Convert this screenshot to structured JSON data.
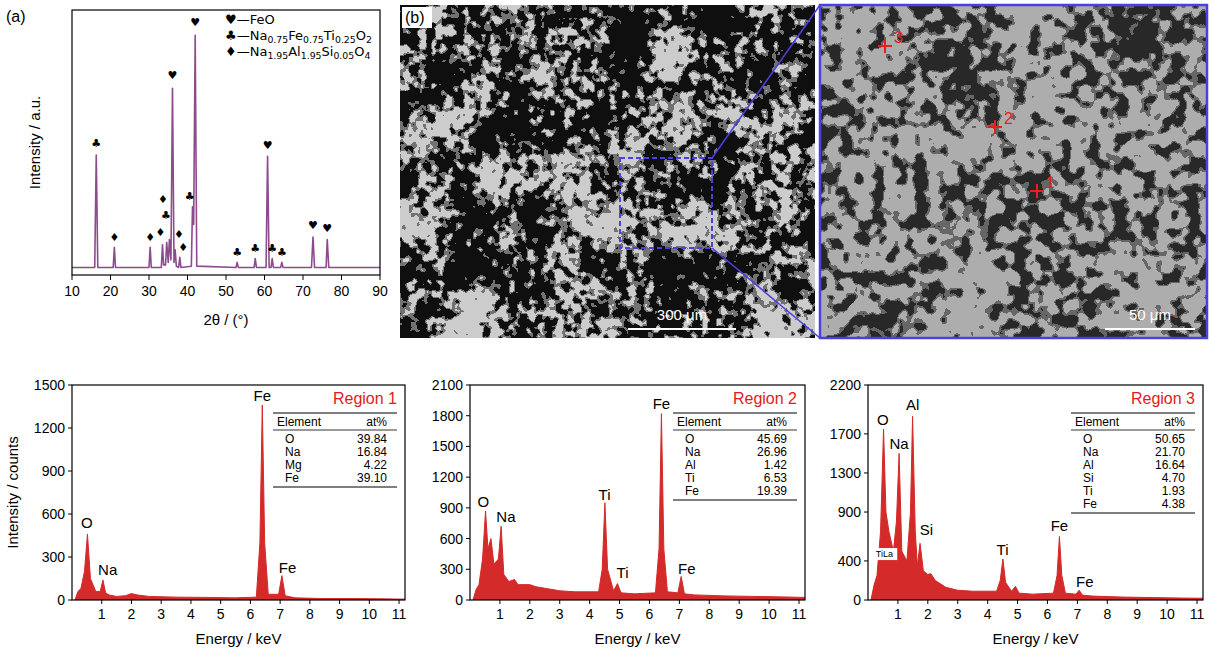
{
  "chart_data": [
    {
      "type": "line",
      "panel_label": "(a)",
      "x_label": "2θ / (°)",
      "y_label": "Intensity / a.u.",
      "xlim": [
        10,
        90
      ],
      "xticks": [
        10,
        20,
        30,
        40,
        50,
        60,
        70,
        80,
        90
      ],
      "ylim": [
        0,
        105
      ],
      "tick_labels": "x",
      "color": "#8c4b8c",
      "legend": "top-right",
      "legend_entries": [
        "♥—FeO",
        "♣—Na0.75Fe0.75Ti0.25O2",
        "♦—Na1.95Al1.95Si0.05O4"
      ],
      "x": [
        10,
        15.9,
        16.3,
        16.7,
        20.7,
        21.0,
        21.3,
        30.0,
        30.3,
        30.6,
        33.2,
        33.5,
        33.8,
        34.3,
        34.6,
        35.0,
        35.3,
        35.7,
        36.1,
        36.5,
        36.8,
        37.1,
        37.7,
        38.0,
        38.3,
        41.0,
        41.3,
        41.6,
        42.0,
        42.4,
        52.6,
        52.9,
        53.2,
        57.3,
        57.6,
        57.9,
        60.4,
        60.8,
        61.2,
        61.7,
        62.0,
        62.3,
        64.2,
        64.5,
        64.8,
        72.2,
        72.6,
        73.0,
        76.0,
        76.3,
        76.7,
        90
      ],
      "values": [
        3,
        3,
        47.5,
        3,
        3,
        11,
        3,
        3,
        11,
        3,
        3,
        12,
        4,
        4,
        13,
        5,
        14,
        6,
        74,
        5,
        10,
        3.5,
        3,
        7,
        3,
        3.5,
        27,
        20,
        95,
        3.5,
        3,
        5,
        3,
        3,
        6.5,
        3,
        3,
        47,
        3,
        3,
        6.5,
        3,
        3,
        5,
        3,
        3,
        15,
        3,
        3,
        14,
        3,
        3
      ],
      "annotations": [
        {
          "x": 16.3,
          "y": 52,
          "text": "♣"
        },
        {
          "x": 21.0,
          "y": 15,
          "text": "♦"
        },
        {
          "x": 30.3,
          "y": 15,
          "text": "♦"
        },
        {
          "x": 33.0,
          "y": 17,
          "text": "♦"
        },
        {
          "x": 34.4,
          "y": 23.5,
          "text": "♣"
        },
        {
          "x": 33.6,
          "y": 30,
          "text": "♦"
        },
        {
          "x": 36.1,
          "y": 79,
          "text": "♥"
        },
        {
          "x": 37.8,
          "y": 16,
          "text": "♦"
        },
        {
          "x": 38.9,
          "y": 11,
          "text": "♦"
        },
        {
          "x": 40.6,
          "y": 31,
          "text": "♣"
        },
        {
          "x": 42.0,
          "y": 100,
          "text": "♥"
        },
        {
          "x": 52.9,
          "y": 9,
          "text": "♣"
        },
        {
          "x": 57.6,
          "y": 10.5,
          "text": "♣"
        },
        {
          "x": 60.8,
          "y": 51.5,
          "text": "♥"
        },
        {
          "x": 62.0,
          "y": 10.5,
          "text": "♣"
        },
        {
          "x": 64.5,
          "y": 9,
          "text": "♣"
        },
        {
          "x": 72.6,
          "y": 19.5,
          "text": "♥"
        },
        {
          "x": 76.3,
          "y": 18.5,
          "text": "♥"
        }
      ]
    },
    {
      "type": "area",
      "title": "Region 1",
      "x_label": "Energy / keV",
      "y_label": "Intensity / counts",
      "xlim": [
        0,
        11.2
      ],
      "xticks": [
        1,
        2,
        3,
        4,
        5,
        6,
        7,
        8,
        9,
        10,
        11
      ],
      "ylim": [
        0,
        1500
      ],
      "yticks": [
        0,
        300,
        600,
        900,
        1200,
        1500
      ],
      "color": "#d42a2a",
      "x": [
        0.1,
        0.2,
        0.3,
        0.42,
        0.52,
        0.62,
        0.72,
        0.8,
        0.95,
        1.04,
        1.13,
        1.25,
        1.5,
        1.8,
        2.0,
        2.2,
        2.6,
        3.5,
        4.5,
        5.5,
        6.2,
        6.32,
        6.4,
        6.48,
        6.6,
        6.95,
        7.06,
        7.17,
        7.5,
        8.5,
        9.5,
        10.5,
        11.2
      ],
      "values": [
        0,
        60,
        80,
        200,
        460,
        150,
        100,
        60,
        60,
        140,
        50,
        35,
        25,
        30,
        45,
        35,
        25,
        20,
        18,
        15,
        20,
        400,
        1360,
        400,
        40,
        40,
        170,
        30,
        15,
        10,
        10,
        8,
        6
      ],
      "annotations": [
        {
          "x": 0.5,
          "y": 540,
          "text": "O"
        },
        {
          "x": 1.2,
          "y": 210,
          "text": "Na"
        },
        {
          "x": 6.4,
          "y": 1430,
          "text": "Fe"
        },
        {
          "x": 7.25,
          "y": 230,
          "text": "Fe"
        }
      ],
      "table": {
        "header": [
          "Element",
          "at%"
        ],
        "rows": [
          [
            "O",
            "39.84"
          ],
          [
            "Na",
            "16.84"
          ],
          [
            "Mg",
            "4.22"
          ],
          [
            "Fe",
            "39.10"
          ]
        ]
      }
    },
    {
      "type": "area",
      "title": "Region 2",
      "x_label": "Energy / keV",
      "xlim": [
        0,
        11.2
      ],
      "xticks": [
        1,
        2,
        3,
        4,
        5,
        6,
        7,
        8,
        9,
        10,
        11
      ],
      "ylim": [
        0,
        2100
      ],
      "yticks": [
        0,
        300,
        600,
        900,
        1200,
        1500,
        1800,
        2100
      ],
      "color": "#d42a2a",
      "x": [
        0.1,
        0.2,
        0.3,
        0.42,
        0.52,
        0.6,
        0.7,
        0.8,
        0.95,
        1.04,
        1.13,
        1.3,
        1.49,
        1.6,
        2.0,
        2.2,
        2.6,
        3.0,
        3.5,
        4.3,
        4.42,
        4.51,
        4.6,
        4.8,
        4.93,
        5.05,
        5.5,
        6.2,
        6.32,
        6.4,
        6.48,
        6.6,
        6.95,
        7.06,
        7.17,
        7.5,
        8.5,
        9.5,
        10.5,
        11.2
      ],
      "values": [
        0,
        100,
        150,
        400,
        870,
        500,
        600,
        350,
        400,
        720,
        250,
        180,
        200,
        150,
        150,
        130,
        110,
        90,
        80,
        80,
        300,
        950,
        300,
        90,
        160,
        70,
        60,
        70,
        500,
        1820,
        500,
        80,
        70,
        230,
        60,
        50,
        40,
        35,
        30,
        25
      ],
      "annotations": [
        {
          "x": 0.45,
          "y": 960,
          "text": "O"
        },
        {
          "x": 1.2,
          "y": 820,
          "text": "Na"
        },
        {
          "x": 4.5,
          "y": 1030,
          "text": "Ti"
        },
        {
          "x": 5.1,
          "y": 270,
          "text": "Ti"
        },
        {
          "x": 6.4,
          "y": 1920,
          "text": "Fe"
        },
        {
          "x": 7.25,
          "y": 310,
          "text": "Fe"
        }
      ],
      "table": {
        "header": [
          "Element",
          "at%"
        ],
        "rows": [
          [
            "O",
            "45.69"
          ],
          [
            "Na",
            "26.96"
          ],
          [
            "Al",
            "1.42"
          ],
          [
            "Ti",
            "6.53"
          ],
          [
            "Fe",
            "19.39"
          ]
        ]
      }
    },
    {
      "type": "area",
      "title": "Region 3",
      "x_label": "Energy / keV",
      "xlim": [
        0,
        11.2
      ],
      "xticks": [
        1,
        2,
        3,
        4,
        5,
        6,
        7,
        8,
        9,
        10,
        11
      ],
      "ylim": [
        0,
        2200
      ],
      "yticks": [
        0,
        400,
        900,
        1300,
        1700,
        2200
      ],
      "color": "#d42a2a",
      "x": [
        0.1,
        0.2,
        0.3,
        0.42,
        0.52,
        0.6,
        0.7,
        0.85,
        0.95,
        1.04,
        1.13,
        1.3,
        1.42,
        1.49,
        1.58,
        1.65,
        1.74,
        1.85,
        2.0,
        2.1,
        2.25,
        2.6,
        3.0,
        3.5,
        4.3,
        4.42,
        4.51,
        4.6,
        4.8,
        4.93,
        5.05,
        5.5,
        6.2,
        6.32,
        6.4,
        6.48,
        6.6,
        6.95,
        7.06,
        7.17,
        7.5,
        8.5,
        9.5,
        10.5,
        11.2
      ],
      "values": [
        0,
        150,
        250,
        700,
        1750,
        900,
        700,
        500,
        800,
        1500,
        500,
        400,
        900,
        1880,
        700,
        350,
        580,
        300,
        260,
        270,
        200,
        130,
        100,
        90,
        90,
        200,
        420,
        180,
        90,
        140,
        70,
        60,
        70,
        250,
        650,
        250,
        70,
        60,
        100,
        50,
        40,
        30,
        25,
        20,
        18
      ],
      "annotations": [
        {
          "x": 0.5,
          "y": 1850,
          "text": "O"
        },
        {
          "x": 0.55,
          "y": 470,
          "text": "TiLa"
        },
        {
          "x": 1.04,
          "y": 1600,
          "text": "Na"
        },
        {
          "x": 1.49,
          "y": 2000,
          "text": "Al"
        },
        {
          "x": 1.95,
          "y": 720,
          "text": "Si"
        },
        {
          "x": 4.5,
          "y": 520,
          "text": "Ti"
        },
        {
          "x": 6.4,
          "y": 760,
          "text": "Fe"
        },
        {
          "x": 7.25,
          "y": 190,
          "text": "Fe"
        }
      ],
      "table": {
        "header": [
          "Element",
          "at%"
        ],
        "rows": [
          [
            "O",
            "50.65"
          ],
          [
            "Na",
            "21.70"
          ],
          [
            "Al",
            "16.64"
          ],
          [
            "Si",
            "4.70"
          ],
          [
            "Ti",
            "1.93"
          ],
          [
            "Fe",
            "4.38"
          ]
        ]
      }
    }
  ],
  "micrograph": {
    "panel_label": "(b)",
    "scale_bars": [
      "300 μm",
      "50 μm"
    ],
    "points": [
      "1",
      "2",
      "3"
    ]
  }
}
